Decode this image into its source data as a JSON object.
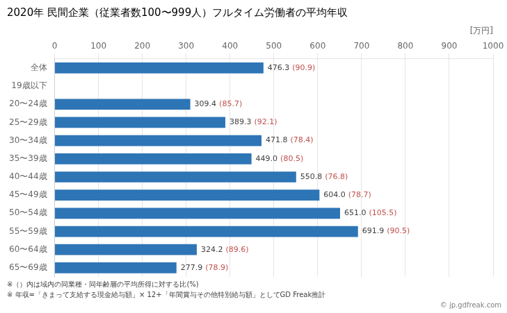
{
  "chart_data": {
    "type": "bar",
    "orientation": "horizontal",
    "title": "2020年 民間企業（従業者数100〜999人）フルタイム労働者の平均年収",
    "xlabel": "[万円]",
    "categories": [
      "全体",
      "19歳以下",
      "20〜24歳",
      "25〜29歳",
      "30〜34歳",
      "35〜39歳",
      "40〜44歳",
      "45〜49歳",
      "50〜54歳",
      "55〜59歳",
      "60〜64歳",
      "65〜69歳"
    ],
    "values": [
      476.3,
      null,
      309.4,
      389.3,
      471.8,
      449.0,
      550.8,
      604.0,
      651.0,
      691.9,
      324.2,
      277.9
    ],
    "value_labels": [
      "476.3",
      null,
      "309.4",
      "389.3",
      "471.8",
      "449.0",
      "550.8",
      "604.0",
      "651.0",
      "691.9",
      "324.2",
      "277.9"
    ],
    "ratio_labels": [
      "(90.9)",
      null,
      "(85.7)",
      "(92.1)",
      "(78.4)",
      "(80.5)",
      "(76.8)",
      "(78.7)",
      "(105.5)",
      "(90.5)",
      "(89.6)",
      "(78.9)"
    ],
    "color": "#2e75b6",
    "data_labels": true,
    "xlim": [
      0,
      1000
    ],
    "xticks": [
      0,
      100,
      200,
      300,
      400,
      500,
      600,
      700,
      800,
      900,
      1000
    ],
    "grid": true,
    "annotations": [
      "※（）内は域内の同業種・同年齢層の平均所得に対する比(%)",
      "※ 年収=「きまって支給する現金給与額」× 12+「年間賞与その他特別給与額」としてGD Freak推計",
      "© jp.gdfreak.com"
    ]
  }
}
